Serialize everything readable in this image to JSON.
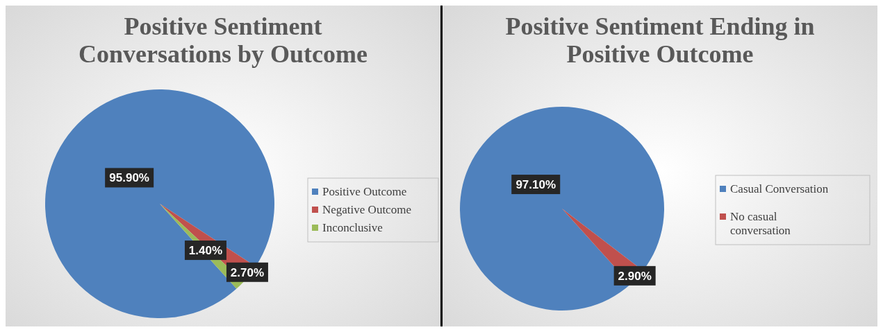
{
  "chart_data": [
    {
      "type": "pie",
      "title": "Positive Sentiment Conversations by Outcome",
      "categories": [
        "Positive Outcome",
        "Negative Outcome",
        "Inconclusive"
      ],
      "values": [
        95.9,
        2.7,
        1.4
      ],
      "value_labels": [
        "95.90%",
        "2.70%",
        "1.40%"
      ],
      "colors": [
        "#4f81bd",
        "#c0504d",
        "#9bbb59"
      ],
      "legend": "right"
    },
    {
      "type": "pie",
      "title": "Positive Sentiment Ending in Positive Outcome",
      "categories": [
        "Casual Conversation",
        "No casual conversation"
      ],
      "values": [
        97.1,
        2.9
      ],
      "value_labels": [
        "97.10%",
        "2.90%"
      ],
      "colors": [
        "#4f81bd",
        "#c0504d"
      ],
      "legend": "right"
    }
  ]
}
